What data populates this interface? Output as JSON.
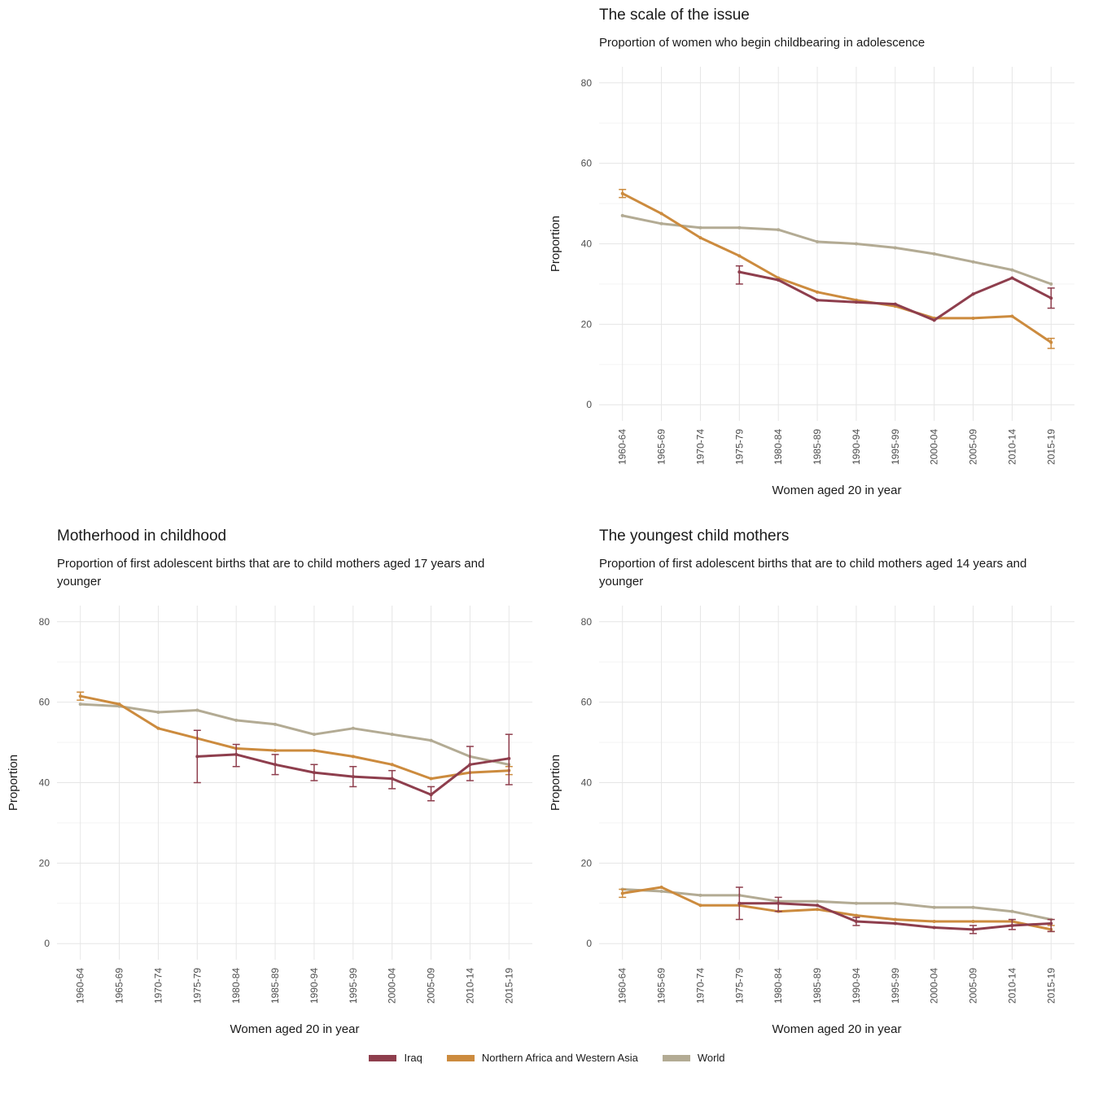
{
  "colors": {
    "iraq": "#8e3e4d",
    "nawa": "#cc8b3e",
    "world": "#b3ab94",
    "grid_major": "#e6e6e6",
    "grid_minor": "#f2f2f2",
    "tick_text": "#4d4d4d",
    "title_text": "#1a1a1a"
  },
  "legend": {
    "items": [
      {
        "label": "Iraq",
        "color_key": "iraq"
      },
      {
        "label": "Northern Africa and Western Asia",
        "color_key": "nawa"
      },
      {
        "label": "World",
        "color_key": "world"
      }
    ]
  },
  "chart_data": [
    {
      "type": "line",
      "title": "The scale of the issue",
      "subtitle": "Proportion of women who begin childbearing in adolescence",
      "xlabel": "Women aged 20 in year",
      "ylabel": "Proportion",
      "ylim": [
        0,
        80
      ],
      "yticks": [
        0,
        20,
        40,
        60,
        80
      ],
      "yticks_minor": [
        10,
        30,
        50,
        70
      ],
      "categories": [
        "1960-64",
        "1965-69",
        "1970-74",
        "1975-79",
        "1980-84",
        "1985-89",
        "1990-94",
        "1995-99",
        "2000-04",
        "2005-09",
        "2010-14",
        "2015-19"
      ],
      "series": [
        {
          "name": "World",
          "color_key": "world",
          "values": [
            47,
            45,
            44,
            44,
            43.5,
            40.5,
            40,
            39,
            37.5,
            35.5,
            33.5,
            30
          ],
          "err_lo": null,
          "err_hi": null
        },
        {
          "name": "Northern Africa and Western Asia",
          "color_key": "nawa",
          "values": [
            52.5,
            47.5,
            41.5,
            37,
            31.5,
            28,
            26,
            24.5,
            21.5,
            21.5,
            22,
            15.5
          ],
          "err_lo": [
            51.5,
            null,
            null,
            null,
            null,
            null,
            null,
            null,
            null,
            null,
            null,
            14
          ],
          "err_hi": [
            53.5,
            null,
            null,
            null,
            null,
            null,
            null,
            null,
            null,
            null,
            null,
            16.5
          ]
        },
        {
          "name": "Iraq",
          "color_key": "iraq",
          "values": [
            null,
            null,
            null,
            33,
            31,
            26,
            25.5,
            25,
            21,
            27.5,
            31.5,
            26.5
          ],
          "err_lo": [
            null,
            null,
            null,
            30,
            null,
            null,
            null,
            null,
            null,
            null,
            null,
            24
          ],
          "err_hi": [
            null,
            null,
            null,
            34.5,
            null,
            null,
            null,
            null,
            null,
            null,
            null,
            29
          ]
        }
      ]
    },
    {
      "type": "line",
      "title": "Motherhood in childhood",
      "subtitle": "Proportion of first adolescent births that are to child mothers aged 17 years and younger",
      "xlabel": "Women aged 20 in year",
      "ylabel": "Proportion",
      "ylim": [
        0,
        80
      ],
      "yticks": [
        0,
        20,
        40,
        60,
        80
      ],
      "yticks_minor": [
        10,
        30,
        50,
        70
      ],
      "categories": [
        "1960-64",
        "1965-69",
        "1970-74",
        "1975-79",
        "1980-84",
        "1985-89",
        "1990-94",
        "1995-99",
        "2000-04",
        "2005-09",
        "2010-14",
        "2015-19"
      ],
      "series": [
        {
          "name": "World",
          "color_key": "world",
          "values": [
            59.5,
            59,
            57.5,
            58,
            55.5,
            54.5,
            52,
            53.5,
            52,
            50.5,
            46.5,
            44.5
          ],
          "err_lo": null,
          "err_hi": null
        },
        {
          "name": "Northern Africa and Western Asia",
          "color_key": "nawa",
          "values": [
            61.5,
            59.5,
            53.5,
            51,
            48.5,
            48,
            48,
            46.5,
            44.5,
            41,
            42.5,
            43
          ],
          "err_lo": [
            60.5,
            null,
            null,
            null,
            null,
            null,
            null,
            null,
            null,
            null,
            null,
            42
          ],
          "err_hi": [
            62.5,
            null,
            null,
            null,
            null,
            null,
            null,
            null,
            null,
            null,
            null,
            44
          ]
        },
        {
          "name": "Iraq",
          "color_key": "iraq",
          "values": [
            null,
            null,
            null,
            46.5,
            47,
            44.5,
            42.5,
            41.5,
            41,
            37,
            44.5,
            46
          ],
          "err_lo": [
            null,
            null,
            null,
            40,
            44,
            42,
            40.5,
            39,
            38.5,
            35.5,
            40.5,
            39.5
          ],
          "err_hi": [
            null,
            null,
            null,
            53,
            49.5,
            47,
            44.5,
            44,
            43,
            39,
            49,
            52
          ]
        }
      ]
    },
    {
      "type": "line",
      "title": "The youngest child mothers",
      "subtitle": "Proportion of first adolescent births that are to child mothers aged 14 years and younger",
      "xlabel": "Women aged 20 in year",
      "ylabel": "Proportion",
      "ylim": [
        0,
        80
      ],
      "yticks": [
        0,
        20,
        40,
        60,
        80
      ],
      "yticks_minor": [
        10,
        30,
        50,
        70
      ],
      "categories": [
        "1960-64",
        "1965-69",
        "1970-74",
        "1975-79",
        "1980-84",
        "1985-89",
        "1990-94",
        "1995-99",
        "2000-04",
        "2005-09",
        "2010-14",
        "2015-19"
      ],
      "series": [
        {
          "name": "World",
          "color_key": "world",
          "values": [
            13.5,
            13,
            12,
            12,
            10.5,
            10.5,
            10,
            10,
            9,
            9,
            8,
            6
          ],
          "err_lo": null,
          "err_hi": null
        },
        {
          "name": "Northern Africa and Western Asia",
          "color_key": "nawa",
          "values": [
            12.5,
            14,
            9.5,
            9.5,
            8,
            8.5,
            7,
            6,
            5.5,
            5.5,
            5.5,
            3.5
          ],
          "err_lo": [
            11.5,
            null,
            null,
            null,
            null,
            null,
            null,
            null,
            null,
            null,
            null,
            3
          ],
          "err_hi": [
            13.5,
            null,
            null,
            null,
            null,
            null,
            null,
            null,
            null,
            null,
            null,
            4.5
          ]
        },
        {
          "name": "Iraq",
          "color_key": "iraq",
          "values": [
            null,
            null,
            null,
            10,
            10,
            9.5,
            5.5,
            5,
            4,
            3.5,
            4.5,
            5
          ],
          "err_lo": [
            null,
            null,
            null,
            6,
            8,
            null,
            4.5,
            null,
            null,
            2.5,
            3.5,
            3
          ],
          "err_hi": [
            null,
            null,
            null,
            14,
            11.5,
            null,
            6.5,
            null,
            null,
            4.5,
            6,
            6
          ]
        }
      ]
    }
  ]
}
